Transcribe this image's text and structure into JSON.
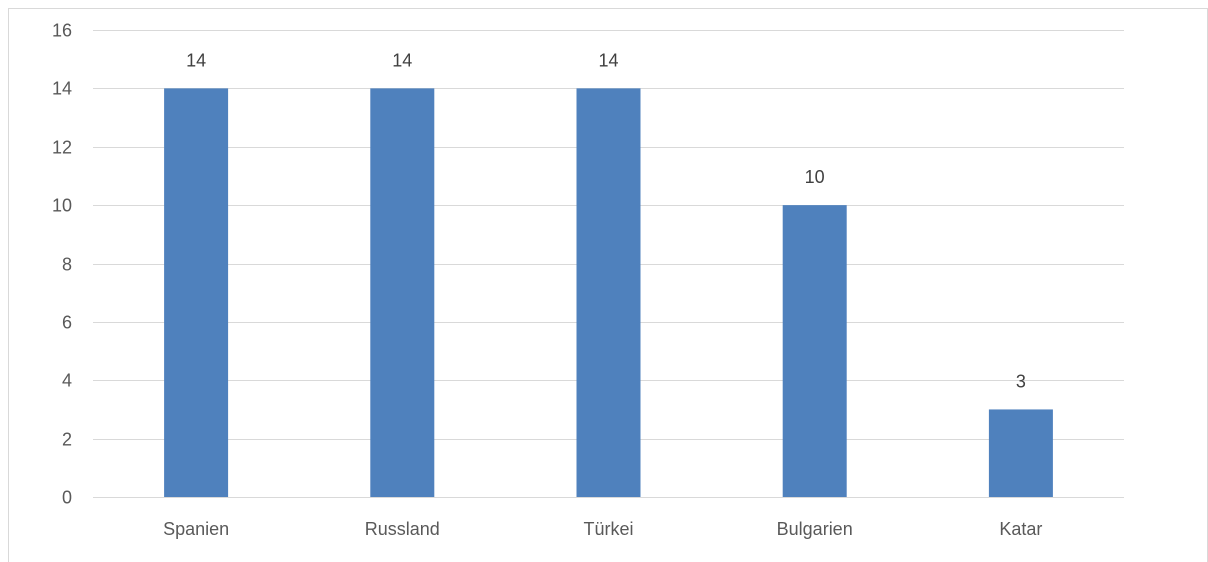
{
  "chart_data": {
    "type": "bar",
    "categories": [
      "Spanien",
      "Russland",
      "Türkei",
      "Bulgarien",
      "Katar"
    ],
    "values": [
      14,
      14,
      14,
      10,
      3
    ],
    "data_labels": [
      "14",
      "14",
      "14",
      "10",
      "3"
    ],
    "y_ticks": [
      "0",
      "2",
      "4",
      "6",
      "8",
      "10",
      "12",
      "14",
      "16"
    ],
    "ylim": [
      0,
      16
    ],
    "y_step": 2,
    "grid": true,
    "legend": "none",
    "bar_color": "#4f81bd",
    "grid_color": "#d9d9d9",
    "title": "",
    "xlabel": "",
    "ylabel": ""
  }
}
